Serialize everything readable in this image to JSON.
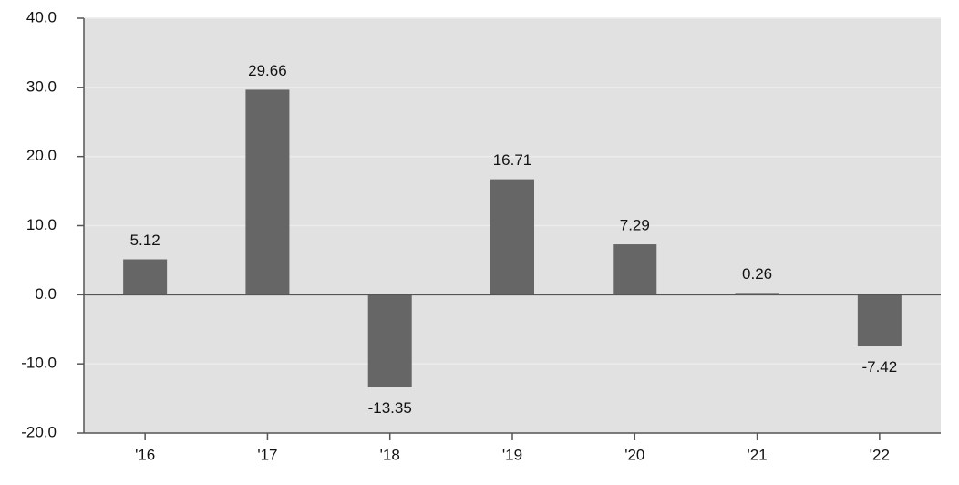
{
  "chart_data": {
    "type": "bar",
    "categories": [
      "'16",
      "'17",
      "'18",
      "'19",
      "'20",
      "'21",
      "'22"
    ],
    "values": [
      5.12,
      29.66,
      -13.35,
      16.71,
      7.29,
      0.26,
      -7.42
    ],
    "color": "#666666",
    "ylim": [
      -20,
      40
    ],
    "yticks": [
      {
        "value": -20,
        "label": "-20.0"
      },
      {
        "value": -10,
        "label": "-10.0"
      },
      {
        "value": 0,
        "label": "0.0"
      },
      {
        "value": 10,
        "label": "10.0"
      },
      {
        "value": 20,
        "label": "20.0"
      },
      {
        "value": 30,
        "label": "30.0"
      },
      {
        "value": 40,
        "label": "40.0"
      }
    ],
    "grid": true
  }
}
